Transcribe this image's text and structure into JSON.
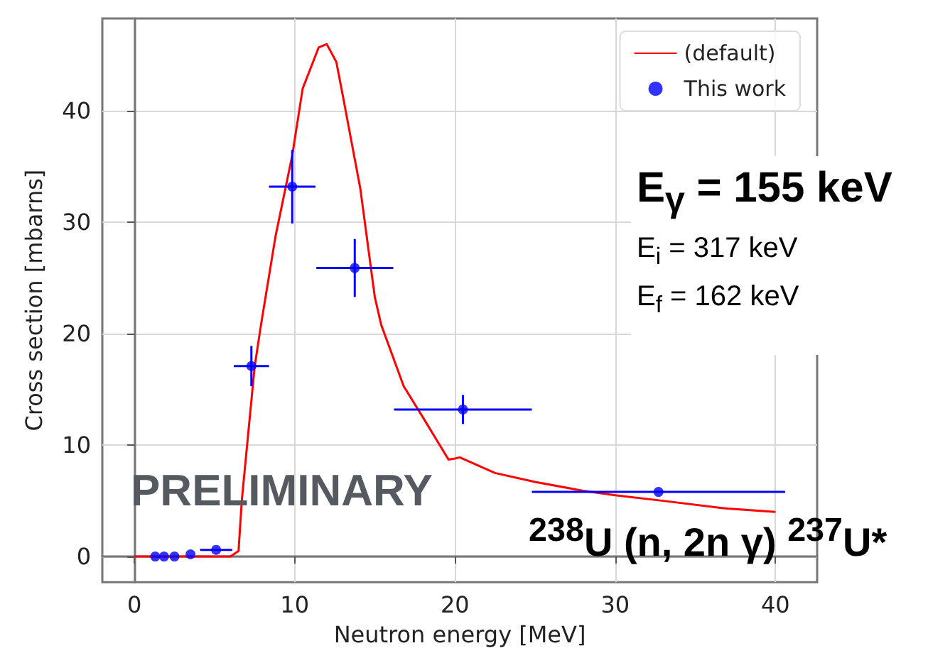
{
  "chart_data": {
    "type": "scatter",
    "xlabel": "Neutron energy [MeV]",
    "ylabel": "Cross section [mbarns]",
    "xlim": [
      -2,
      42.6
    ],
    "ylim": [
      -2.3,
      48.3
    ],
    "xticks": [
      0,
      10,
      20,
      30,
      40
    ],
    "yticks": [
      0,
      10,
      20,
      30,
      40
    ],
    "grid": true,
    "legend": "top right",
    "series": [
      {
        "name": "(default)",
        "type": "line",
        "color": "#ff0000",
        "marker": "none",
        "line_style": "solid",
        "x": [
          0,
          2,
          4,
          6,
          6.5,
          6.7,
          7.5,
          7.9,
          8.8,
          9.85,
          10.5,
          11.5,
          12,
          12.6,
          13,
          14.1,
          15,
          15.4,
          16.8,
          18,
          19.6,
          20,
          20.3,
          22.5,
          25,
          28,
          30,
          33,
          37,
          40
        ],
        "values": [
          0,
          0,
          0,
          0,
          0.5,
          5,
          17,
          20.8,
          28.7,
          36,
          42,
          45.7,
          46,
          44.4,
          41.4,
          33,
          23.3,
          20.8,
          15.3,
          12.5,
          8.7,
          8.8,
          8.9,
          7.5,
          6.7,
          5.9,
          5.5,
          5.0,
          4.3,
          4.0
        ]
      },
      {
        "name": "This work",
        "color": "#0000ff",
        "marker": "circle",
        "x": [
          1.3,
          1.85,
          2.5,
          3.5,
          5.1,
          7.3,
          9.85,
          13.75,
          20.5,
          32.7
        ],
        "values": [
          0,
          0,
          0,
          0.2,
          0.6,
          17.1,
          33.2,
          25.9,
          13.2,
          5.8
        ],
        "errors": [
          null,
          null,
          null,
          null,
          null,
          1.8,
          3.3,
          2.6,
          1.3,
          null
        ],
        "xerrors": [
          null,
          null,
          null,
          null,
          1,
          1.1,
          1.45,
          2.4,
          4.3,
          7.9
        ]
      }
    ],
    "annotations": [
      "PRELIMINARY",
      "E$_{γ}$ = 155 keV",
      "E$_{i}$ = 317 keV",
      "E$_{f}$ = 162 keV",
      "$^{238}$U (n, 2n γ) $^{237}$U*"
    ]
  }
}
